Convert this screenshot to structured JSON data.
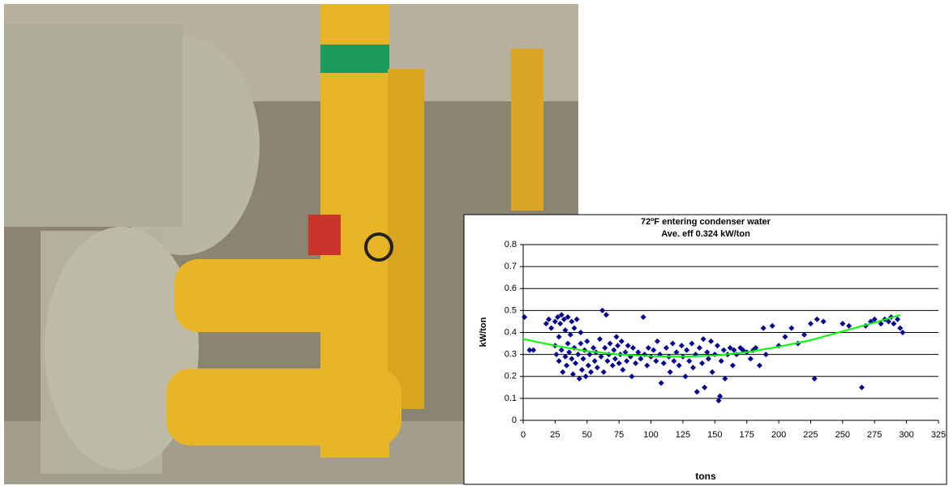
{
  "chart_data": {
    "type": "scatter",
    "title": "72ºF entering condenser water",
    "subtitle": "Ave. eff 0.324 kW/ton",
    "x_label": "tons",
    "y_label": "kW/ton",
    "xlim": [
      0,
      325
    ],
    "xticks": [
      0,
      25,
      50,
      75,
      100,
      125,
      150,
      175,
      200,
      225,
      250,
      275,
      300,
      325
    ],
    "ylim": [
      0,
      0.8
    ],
    "yticks": [
      0,
      0.1,
      0.2,
      0.3,
      0.4,
      0.5,
      0.6,
      0.7,
      0.8
    ],
    "grid": true,
    "series": [
      {
        "type": "scatter",
        "color": "#00008b",
        "x": [
          1,
          5,
          8,
          18,
          20,
          22,
          25,
          27,
          29,
          30,
          32,
          35,
          38,
          40,
          42,
          45,
          28,
          33,
          37,
          25,
          26,
          28,
          30,
          31,
          33,
          34,
          35,
          36,
          38,
          39,
          40,
          41,
          43,
          44,
          45,
          46,
          47,
          48,
          49,
          50,
          51,
          52,
          53,
          55,
          56,
          57,
          58,
          60,
          61,
          62,
          63,
          64,
          65,
          66,
          67,
          68,
          70,
          71,
          72,
          73,
          74,
          75,
          76,
          77,
          78,
          80,
          81,
          82,
          84,
          85,
          86,
          88,
          90,
          92,
          94,
          95,
          97,
          98,
          100,
          102,
          104,
          105,
          107,
          108,
          110,
          112,
          114,
          115,
          117,
          118,
          120,
          122,
          124,
          125,
          127,
          128,
          130,
          132,
          133,
          135,
          136,
          138,
          140,
          141,
          142,
          144,
          145,
          147,
          148,
          150,
          152,
          153,
          154,
          155,
          157,
          158,
          160,
          162,
          164,
          165,
          167,
          170,
          172,
          175,
          178,
          180,
          182,
          185,
          188,
          190,
          195,
          200,
          205,
          210,
          215,
          220,
          225,
          228,
          230,
          235,
          250,
          255,
          265,
          268,
          272,
          275,
          280,
          283,
          286,
          288,
          290,
          293,
          295,
          297
        ],
        "values": [
          0.47,
          0.32,
          0.32,
          0.44,
          0.46,
          0.42,
          0.45,
          0.47,
          0.44,
          0.48,
          0.46,
          0.47,
          0.45,
          0.42,
          0.46,
          0.4,
          0.38,
          0.41,
          0.39,
          0.34,
          0.3,
          0.27,
          0.32,
          0.22,
          0.29,
          0.25,
          0.35,
          0.31,
          0.28,
          0.21,
          0.33,
          0.26,
          0.3,
          0.19,
          0.35,
          0.23,
          0.28,
          0.32,
          0.2,
          0.36,
          0.25,
          0.3,
          0.22,
          0.33,
          0.27,
          0.31,
          0.24,
          0.37,
          0.29,
          0.5,
          0.22,
          0.33,
          0.48,
          0.27,
          0.3,
          0.35,
          0.25,
          0.32,
          0.28,
          0.38,
          0.34,
          0.26,
          0.3,
          0.36,
          0.23,
          0.31,
          0.27,
          0.34,
          0.29,
          0.2,
          0.33,
          0.26,
          0.31,
          0.28,
          0.47,
          0.3,
          0.25,
          0.33,
          0.29,
          0.32,
          0.27,
          0.36,
          0.3,
          0.17,
          0.26,
          0.33,
          0.29,
          0.22,
          0.35,
          0.27,
          0.31,
          0.25,
          0.34,
          0.29,
          0.2,
          0.32,
          0.27,
          0.35,
          0.24,
          0.3,
          0.13,
          0.33,
          0.26,
          0.37,
          0.15,
          0.31,
          0.28,
          0.36,
          0.22,
          0.3,
          0.34,
          0.09,
          0.11,
          0.27,
          0.32,
          0.19,
          0.3,
          0.33,
          0.25,
          0.32,
          0.3,
          0.33,
          0.32,
          0.31,
          0.28,
          0.32,
          0.33,
          0.25,
          0.42,
          0.3,
          0.43,
          0.34,
          0.38,
          0.42,
          0.35,
          0.39,
          0.44,
          0.19,
          0.46,
          0.45,
          0.44,
          0.43,
          0.15,
          0.43,
          0.45,
          0.46,
          0.44,
          0.46,
          0.45,
          0.47,
          0.44,
          0.46,
          0.42,
          0.4
        ]
      },
      {
        "type": "line",
        "color": "#00ff00",
        "x": [
          0,
          25,
          50,
          75,
          100,
          125,
          150,
          175,
          200,
          225,
          250,
          275,
          295
        ],
        "values": [
          0.37,
          0.34,
          0.315,
          0.3,
          0.292,
          0.29,
          0.295,
          0.31,
          0.335,
          0.365,
          0.405,
          0.445,
          0.48
        ]
      }
    ]
  }
}
